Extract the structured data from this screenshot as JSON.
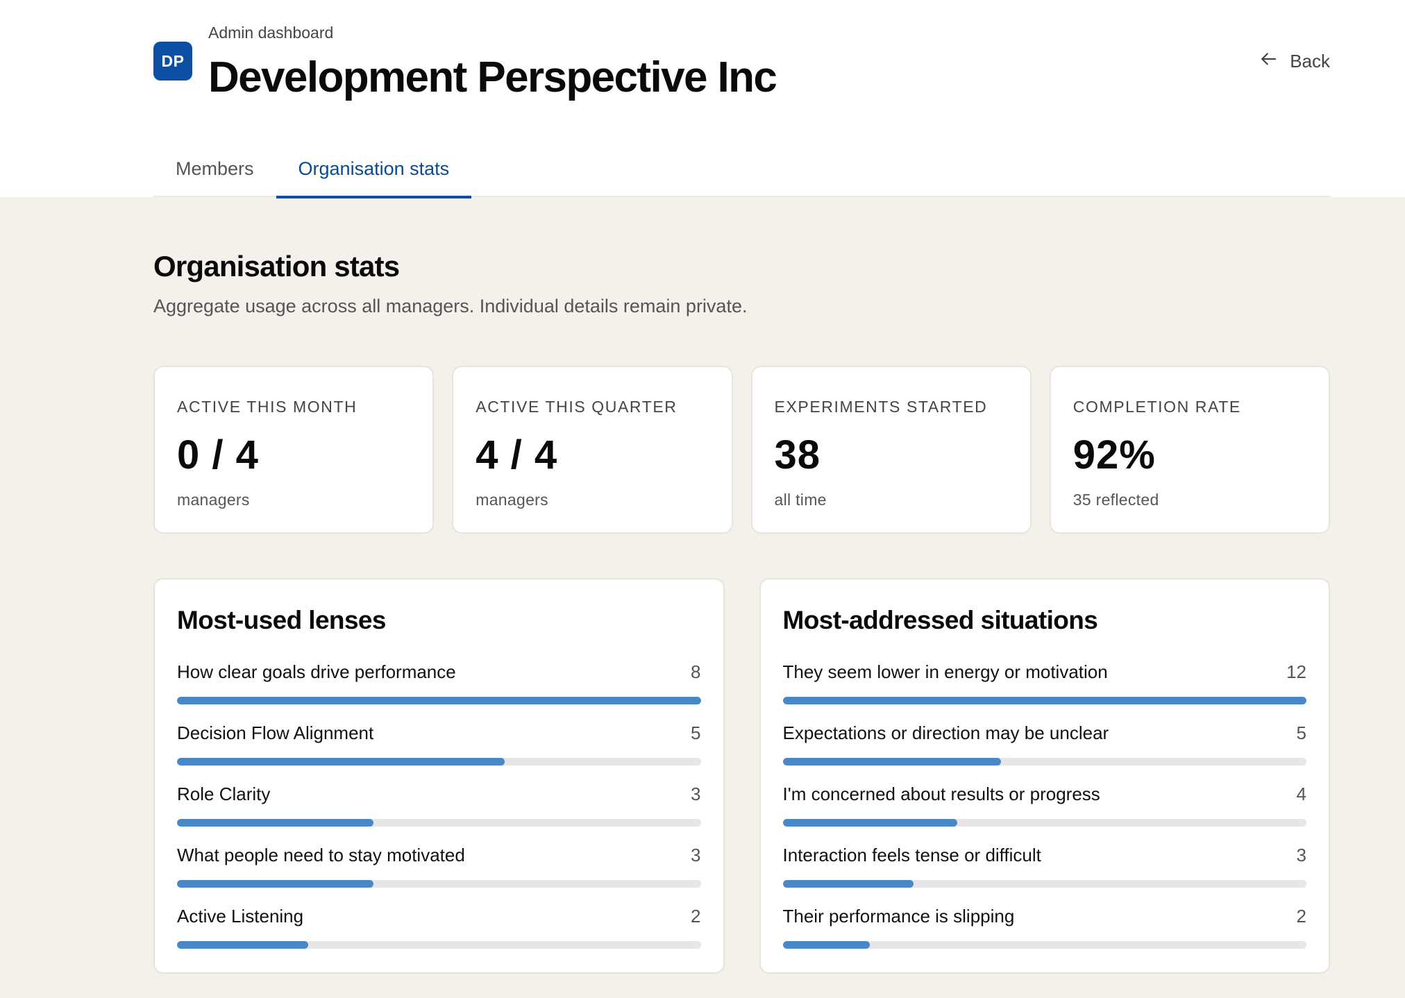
{
  "header": {
    "logo_text": "DP",
    "eyebrow": "Admin dashboard",
    "title": "Development Perspective Inc",
    "back_label": "Back"
  },
  "tabs": [
    {
      "label": "Members",
      "active": false
    },
    {
      "label": "Organisation stats",
      "active": true
    }
  ],
  "section": {
    "title": "Organisation stats",
    "subtitle": "Aggregate usage across all managers. Individual details remain private."
  },
  "stats": [
    {
      "label": "ACTIVE THIS MONTH",
      "value": "0 / 4",
      "sub": "managers"
    },
    {
      "label": "ACTIVE THIS QUARTER",
      "value": "4 / 4",
      "sub": "managers"
    },
    {
      "label": "EXPERIMENTS STARTED",
      "value": "38",
      "sub": "all time"
    },
    {
      "label": "COMPLETION RATE",
      "value": "92%",
      "sub": "35 reflected"
    }
  ],
  "lenses": {
    "title": "Most-used lenses",
    "items": [
      {
        "label": "How clear goals drive performance",
        "count": 8
      },
      {
        "label": "Decision Flow Alignment",
        "count": 5
      },
      {
        "label": "Role Clarity",
        "count": 3
      },
      {
        "label": "What people need to stay motivated",
        "count": 3
      },
      {
        "label": "Active Listening",
        "count": 2
      }
    ]
  },
  "situations": {
    "title": "Most-addressed situations",
    "items": [
      {
        "label": "They seem lower in energy or motivation",
        "count": 12
      },
      {
        "label": "Expectations or direction may be unclear",
        "count": 5
      },
      {
        "label": "I'm concerned about results or progress",
        "count": 4
      },
      {
        "label": "Interaction feels tense or difficult",
        "count": 3
      },
      {
        "label": "Their performance is slipping",
        "count": 2
      }
    ]
  },
  "colors": {
    "brand": "#0b4ea2",
    "bar_fill": "#4a87c9",
    "bar_track": "#e6e6e6",
    "page_bg": "#f4f0ea"
  }
}
